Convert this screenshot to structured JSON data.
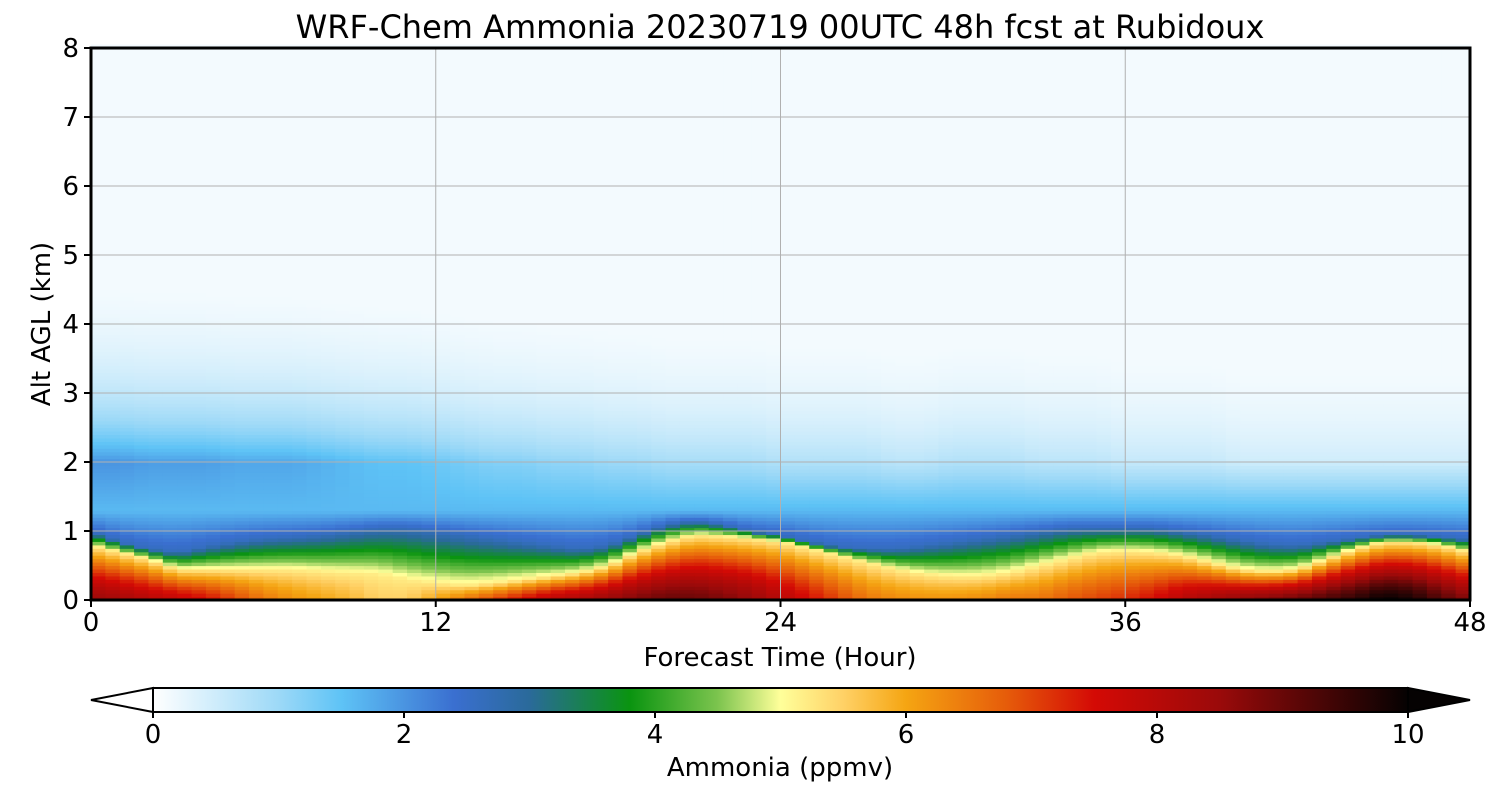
{
  "chart_data": {
    "type": "heatmap",
    "title": "WRF-Chem Ammonia  20230719 00UTC 48h fcst at Rubidoux",
    "xlabel": "Forecast Time (Hour)",
    "ylabel": "Alt AGL (km)",
    "xlim": [
      0,
      48
    ],
    "ylim": [
      0,
      8
    ],
    "x_ticks": [
      0,
      12,
      24,
      36,
      48
    ],
    "y_ticks": [
      0,
      1,
      2,
      3,
      4,
      5,
      6,
      7,
      8
    ],
    "grid": true,
    "colorbar": {
      "label": "Ammonia  (ppmv)",
      "range": [
        0,
        10
      ],
      "ticks": [
        0,
        2,
        4,
        6,
        8,
        10
      ],
      "extend": "both",
      "stops": [
        {
          "value": 0,
          "color": "#ffffff"
        },
        {
          "value": 1.0,
          "color": "#9dd9f7"
        },
        {
          "value": 1.5,
          "color": "#5ec3f6"
        },
        {
          "value": 2.4,
          "color": "#3a6fd0"
        },
        {
          "value": 3.0,
          "color": "#2a6a9a"
        },
        {
          "value": 3.8,
          "color": "#0a9410"
        },
        {
          "value": 4.5,
          "color": "#7cc44e"
        },
        {
          "value": 5.0,
          "color": "#ffff9a"
        },
        {
          "value": 5.5,
          "color": "#ffd166"
        },
        {
          "value": 6.0,
          "color": "#f5a512"
        },
        {
          "value": 6.8,
          "color": "#e65c0a"
        },
        {
          "value": 7.5,
          "color": "#d40a05"
        },
        {
          "value": 8.5,
          "color": "#9a0a0a"
        },
        {
          "value": 10,
          "color": "#050202"
        }
      ]
    },
    "time_hours": [
      0,
      1,
      2,
      3,
      4,
      5,
      6,
      7,
      8,
      9,
      10,
      11,
      12,
      13,
      14,
      15,
      16,
      17,
      18,
      19,
      20,
      21,
      22,
      23,
      24,
      25,
      26,
      27,
      28,
      29,
      30,
      31,
      32,
      33,
      34,
      35,
      36,
      37,
      38,
      39,
      40,
      41,
      42,
      43,
      44,
      45,
      46,
      47,
      48
    ],
    "inversion_height_km": [
      0.8,
      0.7,
      0.6,
      0.45,
      0.45,
      0.45,
      0.45,
      0.45,
      0.42,
      0.4,
      0.38,
      0.3,
      0.25,
      0.22,
      0.25,
      0.3,
      0.35,
      0.4,
      0.5,
      0.7,
      0.85,
      0.95,
      0.93,
      0.9,
      0.85,
      0.75,
      0.65,
      0.55,
      0.45,
      0.38,
      0.35,
      0.35,
      0.4,
      0.5,
      0.6,
      0.7,
      0.72,
      0.7,
      0.65,
      0.55,
      0.45,
      0.42,
      0.45,
      0.6,
      0.75,
      0.85,
      0.85,
      0.8,
      0.7
    ],
    "mixing_top_km": [
      1.0,
      0.85,
      0.75,
      0.7,
      0.78,
      0.85,
      0.9,
      0.92,
      0.95,
      1.0,
      1.05,
      1.05,
      1.0,
      0.95,
      0.9,
      0.85,
      0.8,
      0.75,
      0.8,
      0.95,
      1.1,
      1.15,
      1.1,
      1.0,
      0.95,
      0.85,
      0.78,
      0.75,
      0.75,
      0.8,
      0.85,
      0.9,
      0.95,
      1.0,
      1.05,
      1.05,
      1.05,
      1.05,
      1.0,
      0.95,
      0.88,
      0.82,
      0.8,
      0.85,
      0.9,
      0.95,
      0.95,
      0.92,
      0.88
    ],
    "surface_max_ppmv": [
      8.5,
      8.3,
      8.0,
      7.8,
      7.5,
      7.0,
      6.5,
      6.2,
      6.0,
      5.8,
      5.5,
      5.5,
      6.0,
      6.5,
      7.0,
      7.5,
      8.0,
      8.2,
      8.5,
      8.8,
      9.0,
      9.0,
      8.8,
      8.5,
      8.0,
      7.5,
      7.0,
      6.5,
      6.3,
      6.2,
      6.2,
      6.3,
      6.5,
      6.5,
      6.8,
      7.0,
      7.2,
      7.5,
      8.0,
      8.3,
      8.6,
      8.8,
      9.0,
      9.3,
      9.6,
      10.0,
      9.8,
      9.2,
      8.7
    ],
    "aloft_ppmv_2km": [
      2.0,
      2.0,
      1.9,
      1.9,
      1.9,
      1.8,
      1.8,
      1.8,
      1.7,
      1.6,
      1.5,
      1.5,
      1.4,
      1.3,
      1.2,
      1.2,
      1.1,
      1.1,
      1.0,
      1.0,
      0.9,
      0.9,
      0.9,
      0.9,
      0.8,
      0.8,
      0.8,
      0.8,
      0.7,
      0.7,
      0.8,
      0.8,
      0.8,
      0.7,
      0.7,
      0.7,
      0.6,
      0.6,
      0.6,
      0.6,
      0.5,
      0.5,
      0.5,
      0.5,
      0.5,
      0.5,
      0.5,
      0.5,
      0.5
    ]
  }
}
